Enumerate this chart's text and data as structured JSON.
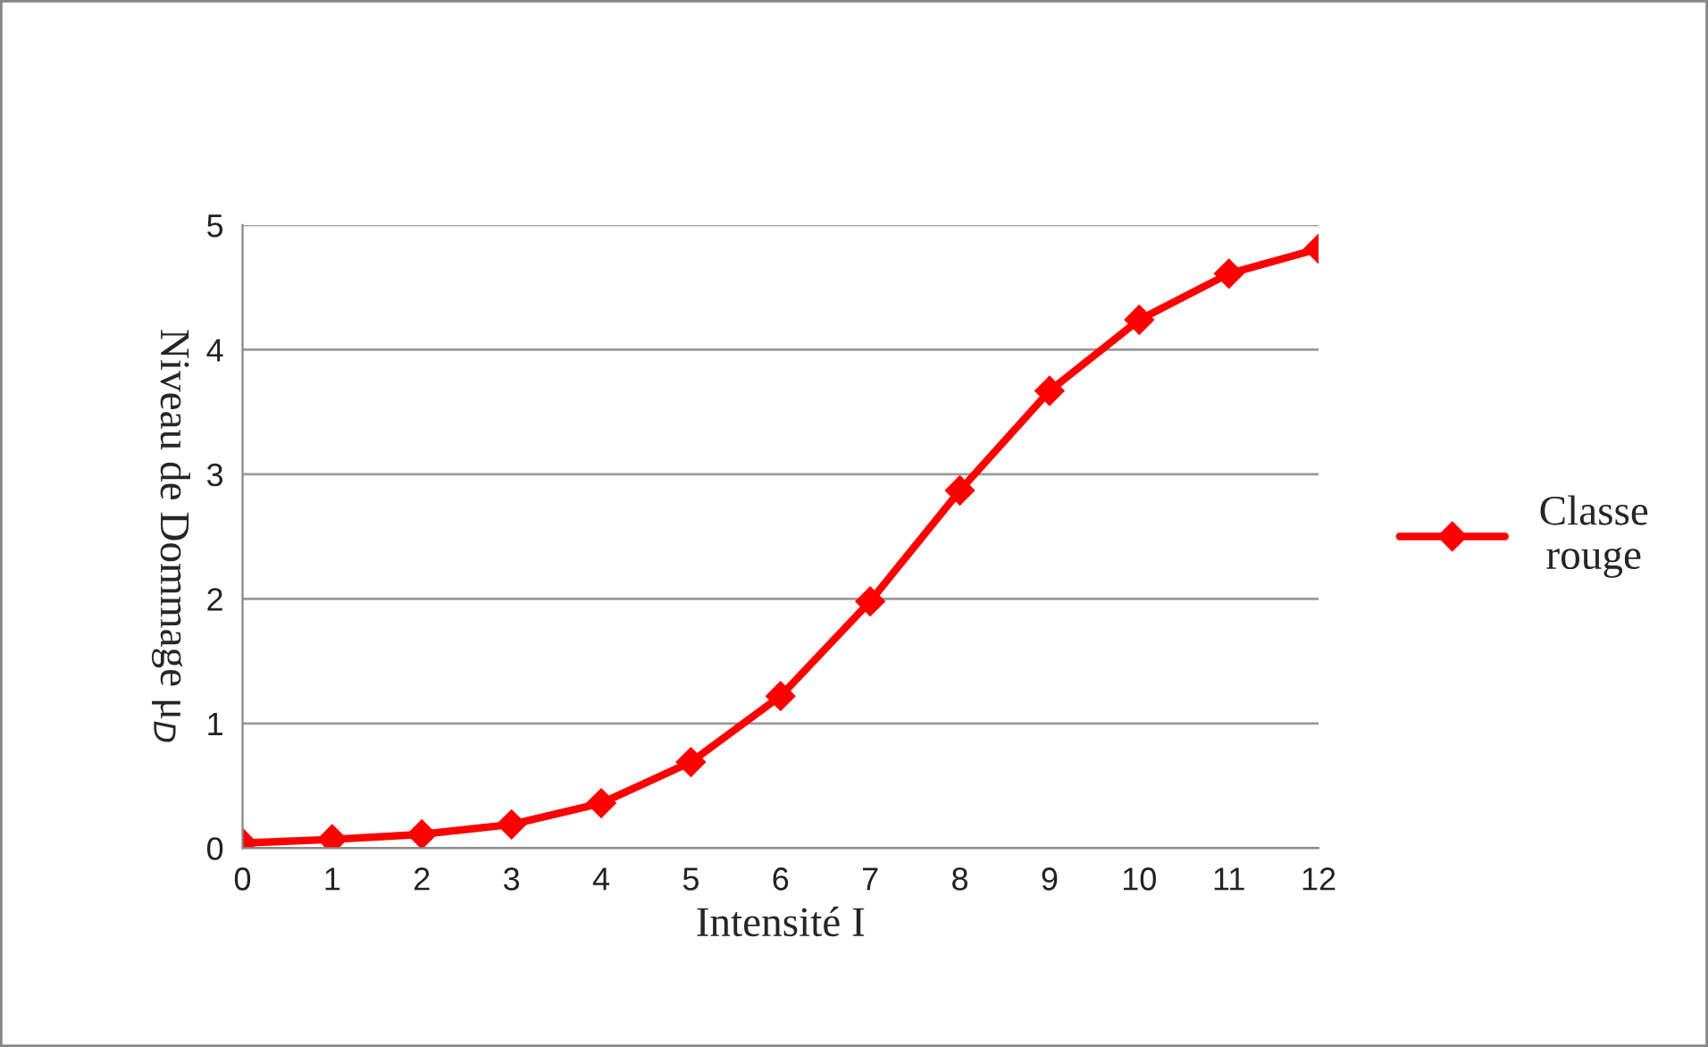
{
  "chart_data": {
    "type": "line",
    "xlabel": "Intensité I",
    "ylabel": "Niveau de Dommage μ$_{D}$",
    "x": [
      0,
      1,
      2,
      3,
      4,
      5,
      6,
      7,
      8,
      9,
      10,
      11,
      12
    ],
    "series": [
      {
        "name": "Classe\nrouge",
        "color": "#ff0000",
        "values": [
          0.04,
          0.07,
          0.11,
          0.19,
          0.36,
          0.69,
          1.22,
          1.98,
          2.87,
          3.67,
          4.24,
          4.61,
          4.81
        ]
      }
    ],
    "xlim": [
      0,
      12
    ],
    "xticks": [
      0,
      1,
      2,
      3,
      4,
      5,
      6,
      7,
      8,
      9,
      10,
      11,
      12
    ],
    "ylim": [
      0,
      5
    ],
    "yticks": [
      0,
      1,
      2,
      3,
      4,
      5
    ],
    "grid": "y",
    "legend": "right",
    "marker": "diamond",
    "line_style": "solid"
  }
}
